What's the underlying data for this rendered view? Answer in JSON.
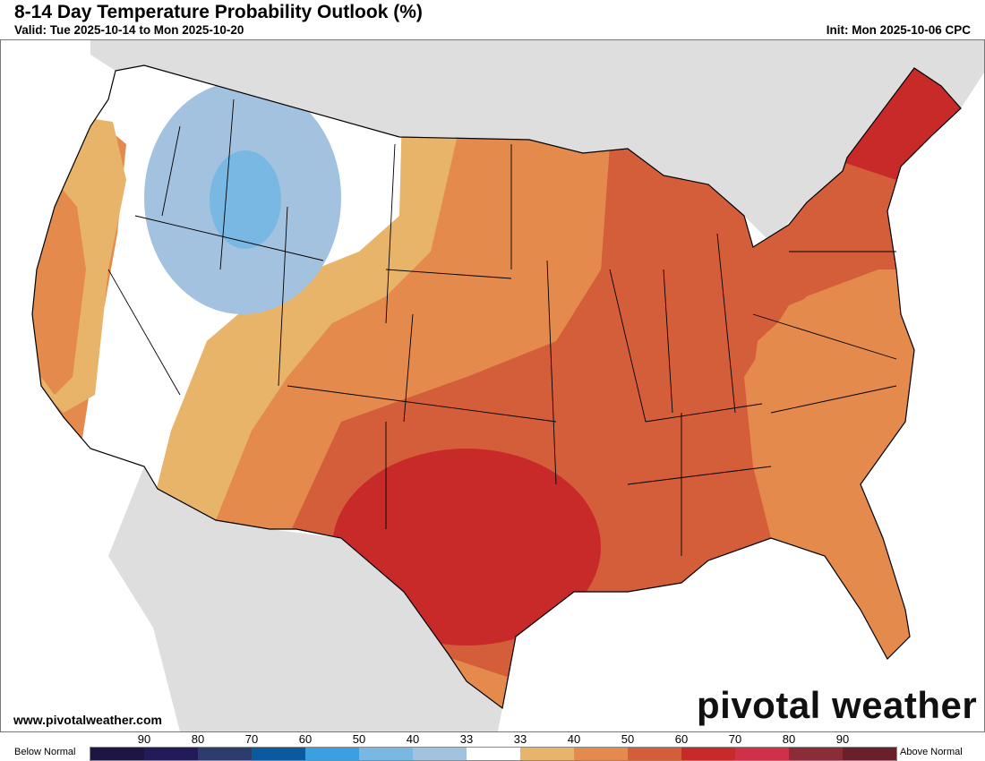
{
  "header": {
    "title": "8-14 Day Temperature Probability Outlook (%)",
    "valid": "Valid: Tue 2025-10-14 to Mon 2025-10-20",
    "init": "Init: Mon 2025-10-06 CPC"
  },
  "footer": {
    "website": "www.pivotalweather.com",
    "logo": "pivotal weather"
  },
  "legend": {
    "below_label": "Below Normal",
    "above_label": "Above Normal",
    "ticks": [
      "90",
      "80",
      "70",
      "60",
      "50",
      "40",
      "33",
      "33",
      "40",
      "50",
      "60",
      "70",
      "80",
      "90"
    ],
    "colors": [
      "#1e1545",
      "#231a5a",
      "#2c3c6c",
      "#0a5aa0",
      "#3aa0e0",
      "#7ab8e4",
      "#a3c2e0",
      "#ffffff",
      "#e8b46a",
      "#e48a4c",
      "#d55e3a",
      "#c82a2a",
      "#d03048",
      "#8c2c38",
      "#6a2028"
    ]
  },
  "map": {
    "land_color": "#dedede",
    "water_color": "#ffffff"
  }
}
